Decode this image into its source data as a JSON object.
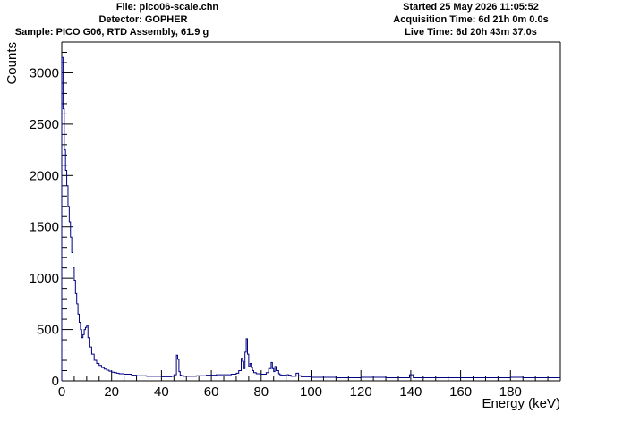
{
  "header": {
    "file": "File: pico06-scale.chn",
    "detector": "Detector: GOPHER",
    "sample": "Sample: PICO G06, RTD Assembly, 61.9 g",
    "started": "Started 25 May 2026 11:05:52",
    "acquisition": "Acquisition Time: 6d 21h 0m 0.0s",
    "live": "Live Time: 6d 20h 43m 37.0s"
  },
  "colors": {
    "histogram": "#000080",
    "axes": "#000000",
    "background": "#ffffff"
  },
  "chart_data": {
    "type": "line",
    "style": "step histogram",
    "xlabel": "Energy (keV)",
    "ylabel": "Counts",
    "xlim": [
      0,
      200
    ],
    "ylim": [
      0,
      3300
    ],
    "xticks": [
      "0",
      "20",
      "40",
      "60",
      "80",
      "100",
      "120",
      "140",
      "160",
      "180"
    ],
    "yticks": [
      "0",
      "500",
      "1000",
      "1500",
      "2000",
      "2500",
      "3000"
    ],
    "grid": false,
    "series": [
      {
        "x": [
          0,
          0.5,
          1,
          1.5,
          2,
          2.5,
          3,
          3.5,
          4,
          4.5,
          5,
          5.5,
          6,
          6.5,
          7,
          7.5,
          8,
          8.5,
          9,
          9.5,
          10,
          10.5,
          11,
          12,
          13,
          14,
          15,
          16,
          17,
          18,
          19,
          20,
          21,
          22,
          23,
          24,
          25,
          26,
          28,
          30,
          32,
          34,
          36,
          38,
          40,
          42,
          44,
          45,
          46,
          46.5,
          47,
          47.5,
          48,
          49,
          50,
          52,
          54,
          56,
          58,
          60,
          62,
          64,
          66,
          68,
          70,
          71,
          72,
          72.5,
          73,
          73.5,
          74,
          74.5,
          75,
          75.5,
          76,
          76.5,
          77,
          78,
          79,
          80,
          81,
          82,
          83,
          84,
          84.5,
          85,
          85.5,
          86,
          87,
          87.5,
          88,
          89,
          90,
          91,
          92,
          93,
          94,
          95,
          96,
          98,
          100,
          105,
          110,
          115,
          120,
          125,
          130,
          135,
          138,
          139.5,
          141,
          145,
          150,
          155,
          160,
          165,
          170,
          175,
          180,
          185,
          190,
          195,
          200
        ],
        "values": [
          3150,
          2650,
          2250,
          2050,
          1900,
          1700,
          1550,
          1400,
          1250,
          1100,
          980,
          850,
          750,
          650,
          570,
          500,
          420,
          450,
          500,
          520,
          540,
          420,
          330,
          260,
          200,
          170,
          150,
          130,
          115,
          105,
          95,
          85,
          80,
          75,
          70,
          70,
          65,
          65,
          55,
          50,
          50,
          45,
          45,
          45,
          40,
          40,
          45,
          60,
          250,
          210,
          90,
          55,
          50,
          45,
          45,
          45,
          50,
          50,
          55,
          55,
          60,
          60,
          60,
          65,
          75,
          100,
          220,
          190,
          120,
          280,
          410,
          260,
          140,
          170,
          130,
          100,
          80,
          70,
          70,
          65,
          65,
          80,
          120,
          180,
          120,
          90,
          140,
          100,
          70,
          60,
          55,
          55,
          60,
          55,
          45,
          45,
          75,
          50,
          40,
          40,
          35,
          35,
          30,
          30,
          35,
          35,
          30,
          30,
          30,
          60,
          30,
          30,
          30,
          30,
          30,
          30,
          30,
          30,
          35,
          30,
          30,
          30,
          30
        ]
      }
    ]
  }
}
